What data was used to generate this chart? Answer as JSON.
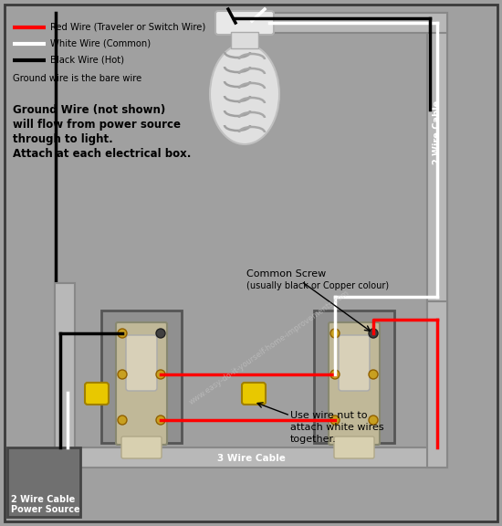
{
  "bg_color": "#a0a0a0",
  "legend_red": "Red Wire (Traveler or Switch Wire)",
  "legend_white": "White Wire (Common)",
  "legend_black": "Black Wire (Hot)",
  "legend_ground": "Ground wire is the bare wire",
  "ground_note_line1": "Ground Wire (not shown)",
  "ground_note_line2": "will flow from power source",
  "ground_note_line3": "through to light.",
  "ground_note_line4": "Attach at each electrical box.",
  "common_screw_line1": "Common Screw",
  "common_screw_line2": "(usually black or Copper colour)",
  "wire_nut_line1": "Use wire nut to",
  "wire_nut_line2": "attach white wires",
  "wire_nut_line3": "together.",
  "label_2wire": "2 Wire Cable",
  "label_power": "Power Source",
  "label_3wire": "3 Wire Cable",
  "label_cable_vert": "2 Wire Cable",
  "watermark": "www.easy-do-it-yourself-home-improvements.com",
  "wire_lw": 2.5,
  "border_dark": "#3a3a3a",
  "conduit_color": "#b8b8b8",
  "conduit_edge": "#888888",
  "switch_body_color": "#c0b898",
  "switch_edge": "#888870",
  "switch_toggle_color": "#d8d0b8",
  "screw_gold": "#c8a020",
  "screw_edge": "#906000",
  "ps_box_color": "#707070",
  "wire_nut_color": "#e8c800"
}
